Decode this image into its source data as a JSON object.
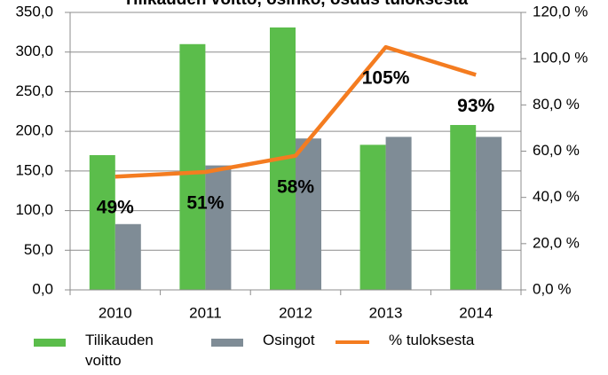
{
  "chart_data": {
    "type": "bar",
    "title": "Tilikauden voitto, osinko, osuus tuloksesta",
    "categories": [
      "2010",
      "2011",
      "2012",
      "2013",
      "2014"
    ],
    "series": [
      {
        "name": "Tilikauden voitto",
        "type": "bar",
        "color": "#5bbd4b",
        "values": [
          170,
          310,
          331,
          183,
          208
        ]
      },
      {
        "name": "Osingot",
        "type": "bar",
        "color": "#7f8c96",
        "values": [
          83,
          157,
          191,
          193,
          193
        ]
      },
      {
        "name": "% tuloksesta",
        "type": "line",
        "axis": "y2",
        "color": "#f47c20",
        "values": [
          49,
          51,
          58,
          105,
          93
        ],
        "value_labels": [
          "49%",
          "51%",
          "58%",
          "105%",
          "93%"
        ]
      }
    ],
    "ylim": [
      0,
      350
    ],
    "yticks": [
      {
        "value": 0,
        "label": "0,0"
      },
      {
        "value": 50,
        "label": "50,0"
      },
      {
        "value": 100,
        "label": "100,0"
      },
      {
        "value": 150,
        "label": "150,0"
      },
      {
        "value": 200,
        "label": "200,0"
      },
      {
        "value": 250,
        "label": "250,0"
      },
      {
        "value": 300,
        "label": "300,0"
      },
      {
        "value": 350,
        "label": "350,0"
      }
    ],
    "y2lim": [
      0,
      120
    ],
    "y2ticks": [
      {
        "value": 0,
        "label": "0,0 %"
      },
      {
        "value": 20,
        "label": "20,0 %"
      },
      {
        "value": 40,
        "label": "40,0 %"
      },
      {
        "value": 60,
        "label": "60,0 %"
      },
      {
        "value": 80,
        "label": "80,0 %"
      },
      {
        "value": 100,
        "label": "100,0 %"
      },
      {
        "value": 120,
        "label": "120,0 %"
      }
    ],
    "grid": true,
    "legend": "bottom"
  }
}
